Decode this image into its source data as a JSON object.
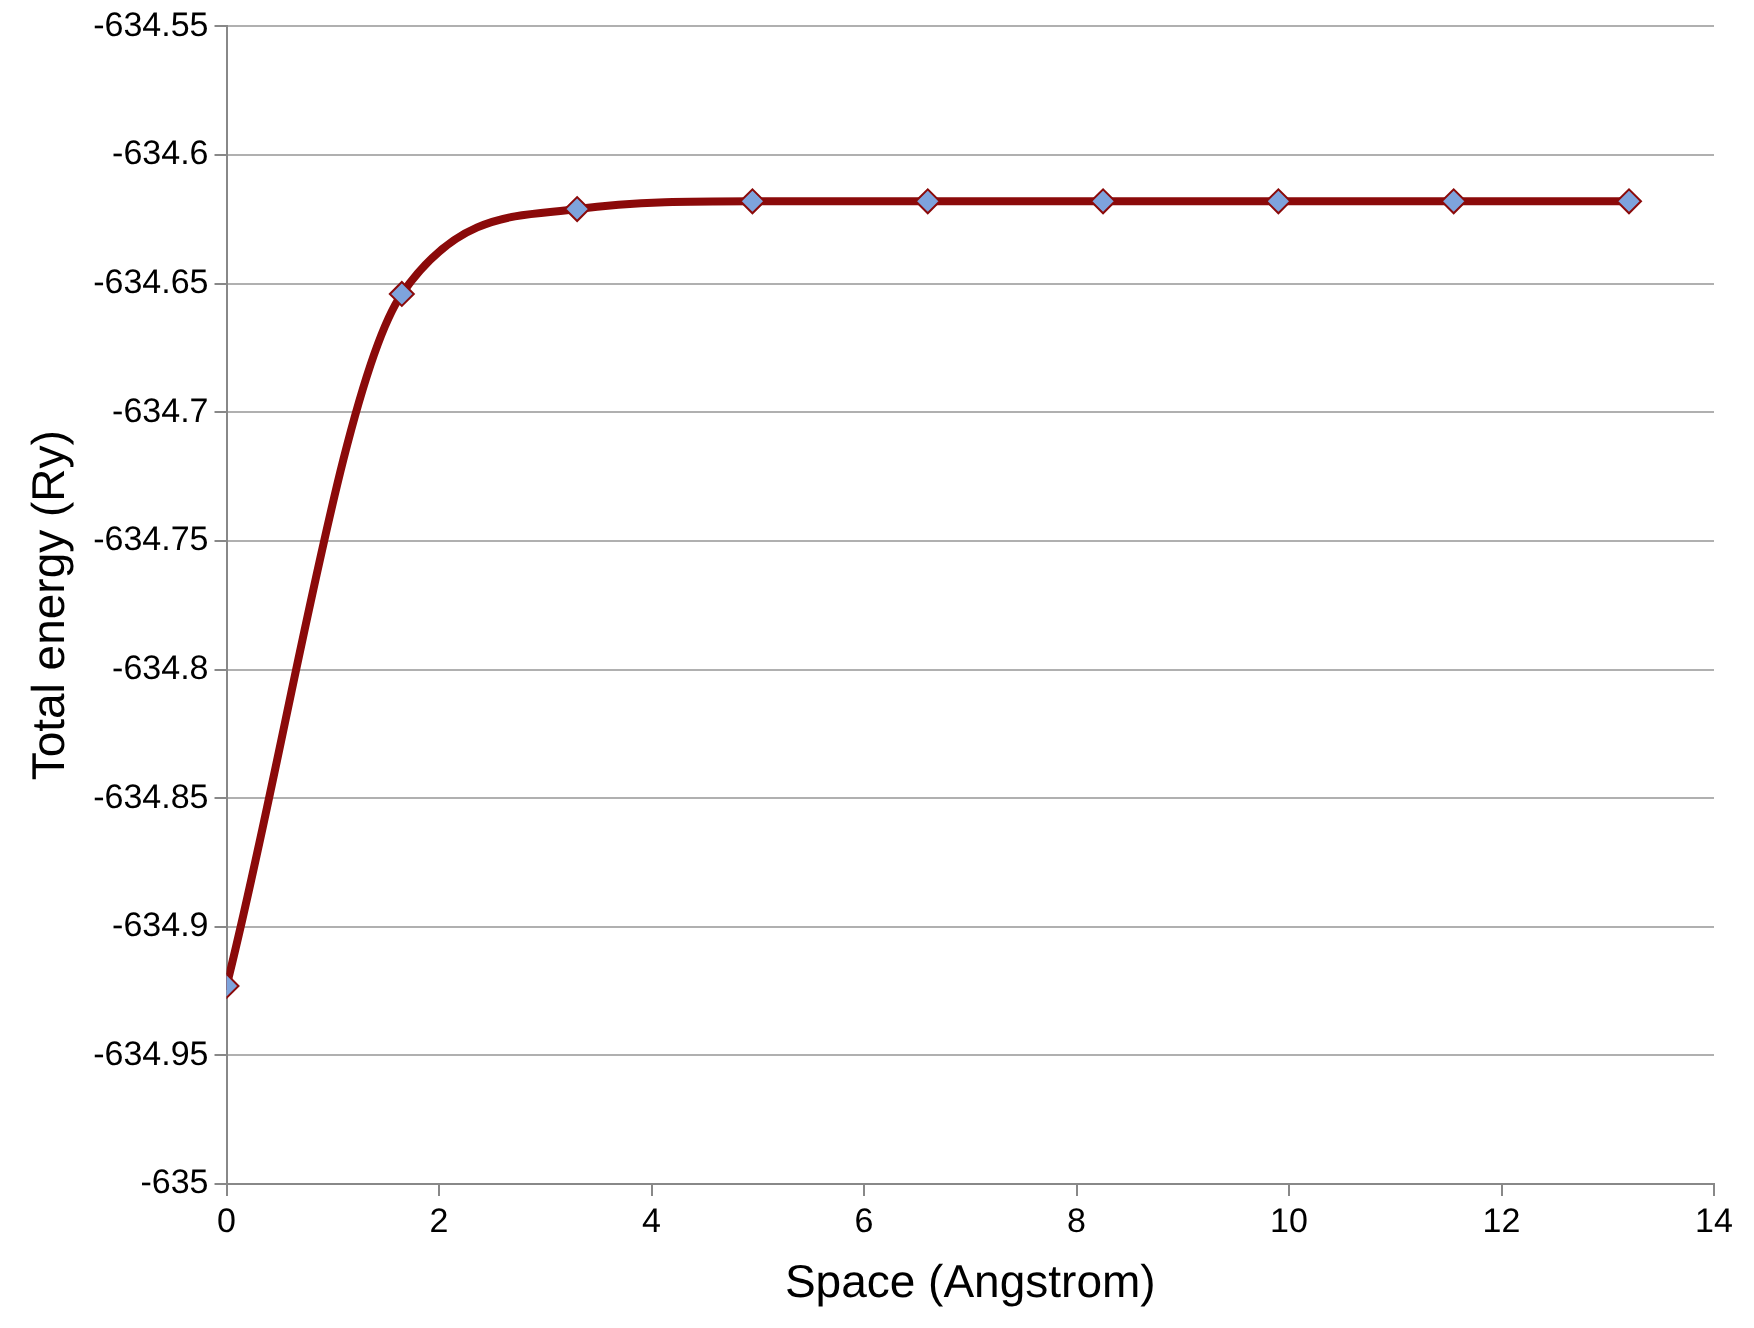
{
  "chart_data": {
    "type": "line",
    "xlabel": "Space (Angstrom)",
    "ylabel": "Total energy (Ry)",
    "x": [
      0,
      1.65,
      3.3,
      4.95,
      6.6,
      8.25,
      9.9,
      11.55,
      13.2
    ],
    "series": [
      {
        "color": "#8b0a0a",
        "values": [
          -634.923,
          -634.654,
          -634.621,
          -634.618,
          -634.618,
          -634.618,
          -634.618,
          -634.618,
          -634.618
        ]
      }
    ],
    "xlim": [
      0,
      14
    ],
    "xticks": [
      0,
      2,
      4,
      6,
      8,
      10,
      12,
      14
    ],
    "ylim": [
      -635,
      -634.55
    ],
    "yticks": [
      -635,
      -634.95,
      -634.9,
      -634.85,
      -634.8,
      -634.75,
      -634.7,
      -634.65,
      -634.6,
      -634.55
    ],
    "grid": "y",
    "legend": false,
    "marker": "diamond",
    "line_style": "solid"
  }
}
